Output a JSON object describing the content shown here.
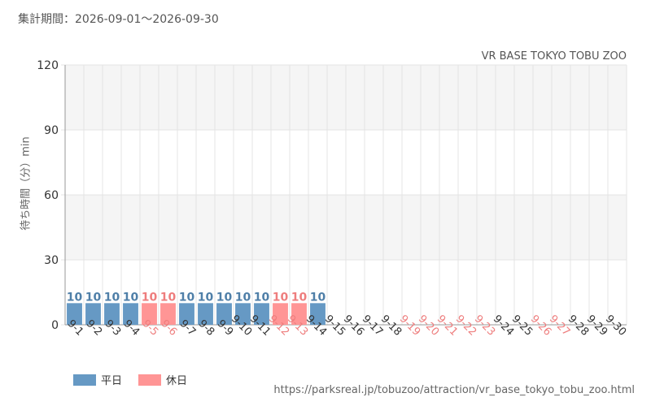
{
  "header": {
    "period_label": "集計期間：2026-09-01～2026-09-30"
  },
  "colors": {
    "weekday": "#6699c4",
    "holiday": "#ff9595",
    "weekday_text": "#4f7fa8",
    "holiday_text": "#ee7d7d",
    "axis_text": "#333333",
    "grid": "#e4e4e4",
    "band": "#f5f5f5"
  },
  "legend": {
    "weekday_label": "平日",
    "holiday_label": "休日"
  },
  "footer": {
    "source_url": "https://parksreal.jp/tobuzoo/attraction/vr_base_tokyo_tobu_zoo.html"
  },
  "chart_data": {
    "type": "bar",
    "title": "VR BASE TOKYO TOBU ZOO",
    "xlabel": "",
    "ylabel": "待ち時間（分）min",
    "ylim": [
      0,
      120
    ],
    "yticks": [
      0,
      30,
      60,
      90,
      120
    ],
    "grid": true,
    "legend_position": "bottom-left",
    "categories": [
      "9-1",
      "9-2",
      "9-3",
      "9-4",
      "9-5",
      "9-6",
      "9-7",
      "9-8",
      "9-9",
      "9-10",
      "9-11",
      "9-12",
      "9-13",
      "9-14",
      "9-15",
      "9-16",
      "9-17",
      "9-18",
      "9-19",
      "9-20",
      "9-21",
      "9-22",
      "9-23",
      "9-24",
      "9-25",
      "9-26",
      "9-27",
      "9-28",
      "9-29",
      "9-30"
    ],
    "day_type": [
      "weekday",
      "weekday",
      "weekday",
      "weekday",
      "holiday",
      "holiday",
      "weekday",
      "weekday",
      "weekday",
      "weekday",
      "weekday",
      "holiday",
      "holiday",
      "weekday",
      "weekday",
      "weekday",
      "weekday",
      "weekday",
      "holiday",
      "holiday",
      "holiday",
      "holiday",
      "holiday",
      "weekday",
      "weekday",
      "holiday",
      "holiday",
      "weekday",
      "weekday",
      "weekday"
    ],
    "values": [
      10,
      10,
      10,
      10,
      10,
      10,
      10,
      10,
      10,
      10,
      10,
      10,
      10,
      10,
      null,
      null,
      null,
      null,
      null,
      null,
      null,
      null,
      null,
      null,
      null,
      null,
      null,
      null,
      null,
      null
    ]
  }
}
